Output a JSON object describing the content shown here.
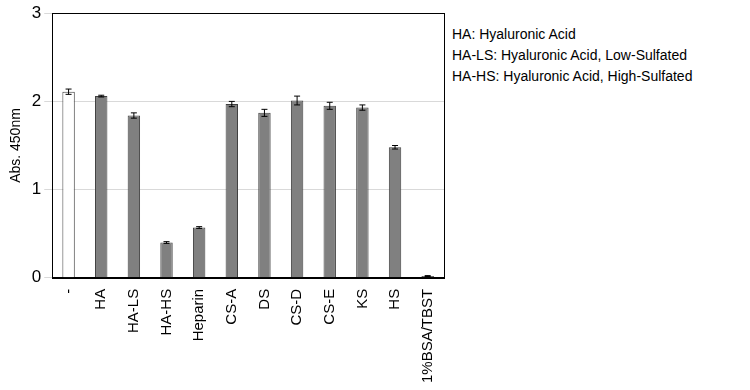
{
  "chart_data": {
    "type": "bar",
    "y_label": "Abs. 450nm",
    "categories": [
      "-",
      "HA",
      "HA-LS",
      "HA-HS",
      "Heparin",
      "CS-A",
      "DS",
      "CS-D",
      "CS-E",
      "KS",
      "HS",
      "1%BSA/TBST"
    ],
    "values": [
      2.11,
      2.06,
      1.84,
      0.4,
      0.57,
      1.97,
      1.87,
      2.01,
      1.95,
      1.93,
      1.48,
      0.02
    ],
    "errors": [
      0.03,
      0.01,
      0.03,
      0.01,
      0.01,
      0.03,
      0.04,
      0.05,
      0.04,
      0.03,
      0.02,
      0.005
    ],
    "colors": [
      "#ffffff",
      "#808080",
      "#808080",
      "#808080",
      "#808080",
      "#808080",
      "#808080",
      "#808080",
      "#808080",
      "#808080",
      "#808080",
      "#808080"
    ],
    "ylim": [
      0,
      3
    ],
    "yticks": [
      0,
      1,
      2,
      3
    ],
    "grid": true,
    "annotations": [
      "HA: Hyaluronic Acid",
      "HA-LS: Hyaluronic Acid, Low-Sulfated",
      "HA-HS: Hyaluronic Acid, High-Sulfated"
    ]
  }
}
